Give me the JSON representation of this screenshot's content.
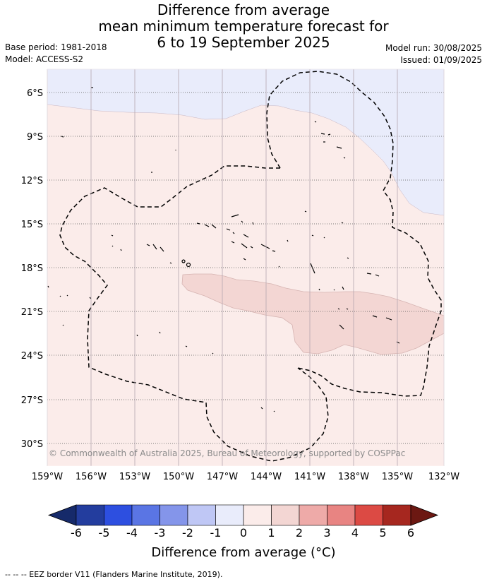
{
  "title": {
    "line1": "Difference from average",
    "line2": "mean minimum temperature forecast for",
    "line3": "6 to 19 September 2025"
  },
  "meta": {
    "base_period": "Base period: 1981-2018",
    "model": "Model: ACCESS-S2",
    "model_run": "Model run: 30/08/2025",
    "issued": "Issued: 01/09/2025"
  },
  "map": {
    "copyright": "© Commonwealth of Australia 2025, Bureau of Meteorology, supported by COSPPac",
    "lat_labels": [
      "6°S",
      "9°S",
      "12°S",
      "15°S",
      "18°S",
      "21°S",
      "24°S",
      "27°S",
      "30°S"
    ],
    "lon_labels": [
      "159°W",
      "156°W",
      "153°W",
      "150°W",
      "147°W",
      "144°W",
      "141°W",
      "138°W",
      "135°W",
      "132°W"
    ],
    "colors": {
      "minus1_to_0": "#e9ecfb",
      "zero_to_1": "#fbecea",
      "one_to_2": "#f3d6d3"
    }
  },
  "colorbar": {
    "ticks": [
      "-6",
      "-5",
      "-4",
      "-3",
      "-2",
      "-1",
      "0",
      "1",
      "2",
      "3",
      "4",
      "5",
      "6"
    ],
    "colors": [
      "#233d9e",
      "#2d4fe0",
      "#5a75e4",
      "#8495ea",
      "#bfc7f5",
      "#e9ecfb",
      "#fbecea",
      "#f3d6d3",
      "#eeaaa8",
      "#e88482",
      "#dc4a44",
      "#a6271f"
    ],
    "min_extend_color": "#162a6a",
    "max_extend_color": "#6c1812",
    "label": "Difference from average (°C)"
  },
  "footnote": "-- -- -- EEZ border V11 (Flanders Marine Institute, 2019)."
}
